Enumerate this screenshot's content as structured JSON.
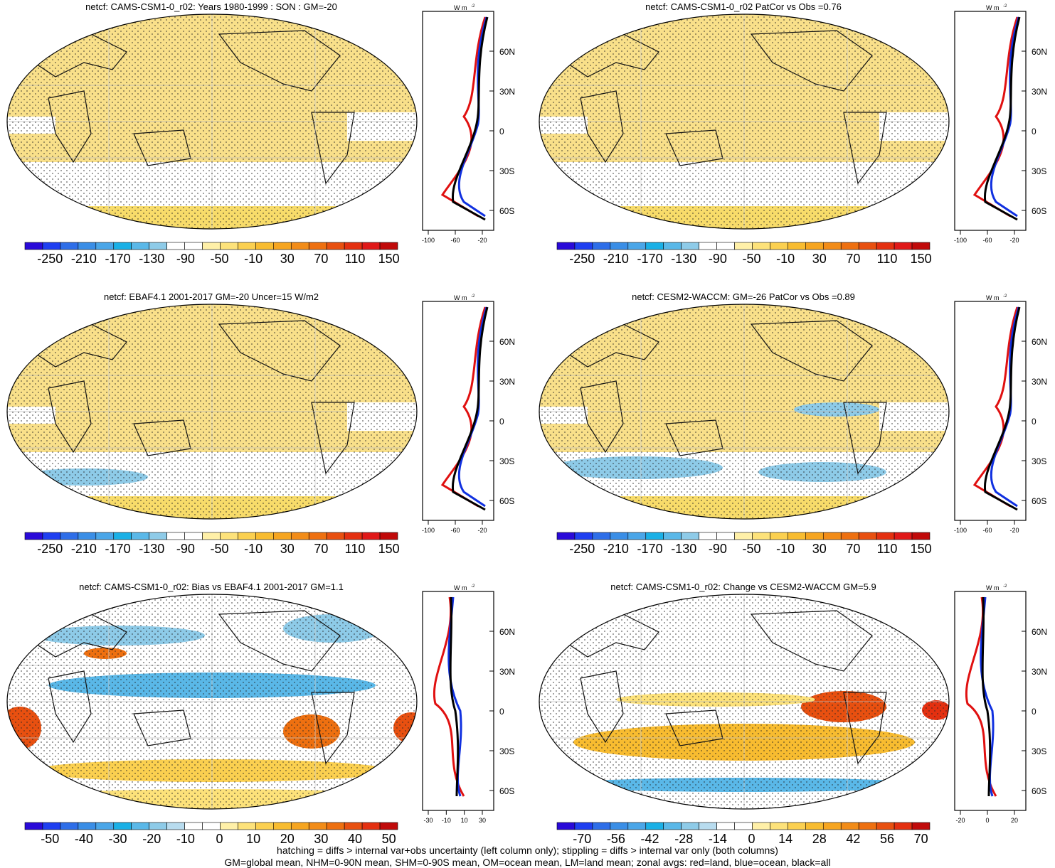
{
  "panels": [
    {
      "title": "netcf: CAMS-CSM1-0_r02: Years 1980-1999 : SON : GM=-20",
      "colorbar_labels": [
        "-250",
        "-210",
        "-170",
        "-130",
        "-90",
        "-50",
        "-10",
        "30",
        "70",
        "110",
        "150"
      ],
      "zonal_axis_ticks": [
        "-100",
        "-60",
        "-20"
      ],
      "lat_ticks": [
        "60N",
        "30N",
        "0",
        "30S",
        "60S"
      ],
      "unit": "W m",
      "unit_sup": "-2",
      "palette": "full"
    },
    {
      "title": "netcf: CAMS-CSM1-0_r02 PatCor vs Obs =0.76",
      "colorbar_labels": [
        "-250",
        "-210",
        "-170",
        "-130",
        "-90",
        "-50",
        "-10",
        "30",
        "70",
        "110",
        "150"
      ],
      "zonal_axis_ticks": [
        "-100",
        "-60",
        "-20"
      ],
      "lat_ticks": [
        "60N",
        "30N",
        "0",
        "30S",
        "60S"
      ],
      "unit": "W m",
      "unit_sup": "-2",
      "palette": "full"
    },
    {
      "title": "netcf: EBAF4.1 2001-2017 GM=-20 Uncer=15 W/m2",
      "colorbar_labels": [
        "-250",
        "-210",
        "-170",
        "-130",
        "-90",
        "-50",
        "-10",
        "30",
        "70",
        "110",
        "150"
      ],
      "zonal_axis_ticks": [
        "-100",
        "-60",
        "-20"
      ],
      "lat_ticks": [
        "60N",
        "30N",
        "0",
        "30S",
        "60S"
      ],
      "unit": "W m",
      "unit_sup": "-2",
      "palette": "full"
    },
    {
      "title": "netcf: CESM2-WACCM: GM=-26 PatCor vs Obs =0.89",
      "colorbar_labels": [
        "-250",
        "-210",
        "-170",
        "-130",
        "-90",
        "-50",
        "-10",
        "30",
        "70",
        "110",
        "150"
      ],
      "zonal_axis_ticks": [
        "-100",
        "-60",
        "-20"
      ],
      "lat_ticks": [
        "60N",
        "30N",
        "0",
        "30S",
        "60S"
      ],
      "unit": "W m",
      "unit_sup": "-2",
      "palette": "full"
    },
    {
      "title": "netcf: CAMS-CSM1-0_r02: Bias vs EBAF4.1 2001-2017  GM=1.1",
      "colorbar_labels": [
        "-50",
        "-40",
        "-30",
        "-20",
        "-10",
        "0",
        "10",
        "20",
        "30",
        "40",
        "50"
      ],
      "zonal_axis_ticks": [
        "-30",
        "-10",
        "10",
        "30"
      ],
      "lat_ticks": [
        "60N",
        "30N",
        "0",
        "30S",
        "60S"
      ],
      "unit": "W m",
      "unit_sup": "-2",
      "palette": "diff"
    },
    {
      "title": "netcf: CAMS-CSM1-0_r02: Change vs CESM2-WACCM GM=5.9",
      "colorbar_labels": [
        "-70",
        "-56",
        "-42",
        "-28",
        "-14",
        "0",
        "14",
        "28",
        "42",
        "56",
        "70"
      ],
      "zonal_axis_ticks": [
        "-20",
        "0",
        "20"
      ],
      "lat_ticks": [
        "60N",
        "30N",
        "0",
        "30S",
        "60S"
      ],
      "unit": "W m",
      "unit_sup": "-2",
      "palette": "diff"
    }
  ],
  "colors": {
    "full": [
      "#2a0ad8",
      "#1f3ff0",
      "#2e6ee8",
      "#3a8ee6",
      "#4aa6e8",
      "#1ab0e6",
      "#5ab8e8",
      "#8ecbe8",
      "#ffffff",
      "#ffffff",
      "#fff0a8",
      "#fde27a",
      "#fbd050",
      "#f8bc30",
      "#f6a520",
      "#f28c18",
      "#ee7010",
      "#e85010",
      "#e43010",
      "#e01818",
      "#c00a0a"
    ],
    "diff": [
      "#2a0ad8",
      "#1f3ff0",
      "#2e6ee8",
      "#3a8ee6",
      "#4aa6e8",
      "#1ab0e6",
      "#5ab8e8",
      "#8ecbe8",
      "#b8dcef",
      "#ffffff",
      "#ffffff",
      "#fff0a8",
      "#fde27a",
      "#fbd050",
      "#f8bc30",
      "#f6a520",
      "#f28c18",
      "#ee7010",
      "#e85010",
      "#e43010",
      "#c00a0a"
    ],
    "land": "#f8dc6a",
    "ocean_fill": "#f9e08a",
    "band_white": "#ffffff",
    "band_blue": "#8ecbe8"
  },
  "footer": {
    "line1": "hatching = diffs > internal var+obs uncertainty (left column only); stippling = diffs > internal var only (both columns)",
    "line2": "GM=global mean, NHM=0-90N mean, SHM=0-90S mean, OM=ocean mean, LM=land mean; zonal avgs: red=land, blue=ocean, black=all"
  }
}
